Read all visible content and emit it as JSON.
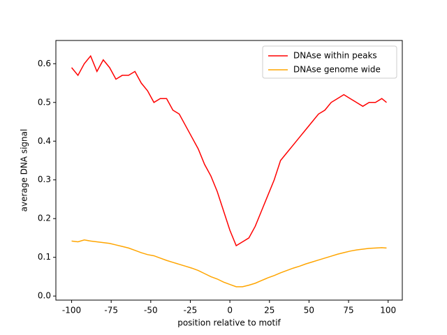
{
  "chart_data": {
    "type": "line",
    "xlabel": "position relative to motif",
    "ylabel": "average DNA signal",
    "x": [
      -100,
      -96,
      -92,
      -88,
      -84,
      -80,
      -76,
      -72,
      -68,
      -64,
      -60,
      -56,
      -52,
      -48,
      -44,
      -40,
      -36,
      -32,
      -28,
      -24,
      -20,
      -16,
      -12,
      -8,
      -4,
      0,
      4,
      8,
      12,
      16,
      20,
      24,
      28,
      32,
      36,
      40,
      44,
      48,
      52,
      56,
      60,
      64,
      68,
      72,
      76,
      80,
      84,
      88,
      92,
      96,
      99
    ],
    "series": [
      {
        "name": "DNAse within peaks",
        "color": "#ff0000",
        "values": [
          0.59,
          0.57,
          0.6,
          0.62,
          0.58,
          0.61,
          0.59,
          0.56,
          0.57,
          0.57,
          0.58,
          0.55,
          0.53,
          0.5,
          0.51,
          0.51,
          0.48,
          0.47,
          0.44,
          0.41,
          0.38,
          0.34,
          0.31,
          0.27,
          0.22,
          0.17,
          0.13,
          0.14,
          0.15,
          0.18,
          0.22,
          0.26,
          0.3,
          0.35,
          0.37,
          0.39,
          0.41,
          0.43,
          0.45,
          0.47,
          0.48,
          0.5,
          0.51,
          0.52,
          0.51,
          0.5,
          0.49,
          0.5,
          0.5,
          0.51,
          0.5
        ]
      },
      {
        "name": "DNAse genome wide",
        "color": "#ffa500",
        "values": [
          0.142,
          0.14,
          0.145,
          0.142,
          0.14,
          0.138,
          0.136,
          0.132,
          0.128,
          0.124,
          0.118,
          0.112,
          0.107,
          0.104,
          0.098,
          0.092,
          0.087,
          0.082,
          0.077,
          0.072,
          0.066,
          0.058,
          0.05,
          0.044,
          0.036,
          0.03,
          0.024,
          0.024,
          0.028,
          0.033,
          0.04,
          0.047,
          0.053,
          0.06,
          0.066,
          0.072,
          0.077,
          0.083,
          0.088,
          0.093,
          0.098,
          0.103,
          0.108,
          0.112,
          0.116,
          0.119,
          0.121,
          0.123,
          0.124,
          0.125,
          0.124
        ]
      }
    ],
    "xlim": [
      -109.95,
      108.95
    ],
    "xticks": [
      -100,
      -75,
      -50,
      -25,
      0,
      25,
      50,
      75,
      100
    ],
    "ylim": [
      -0.0105,
      0.66
    ],
    "yticks": [
      {
        "value": 0,
        "label": "0.0"
      },
      0.1,
      0.2,
      0.3,
      0.4,
      0.5,
      0.6
    ],
    "legend": "upper right"
  }
}
